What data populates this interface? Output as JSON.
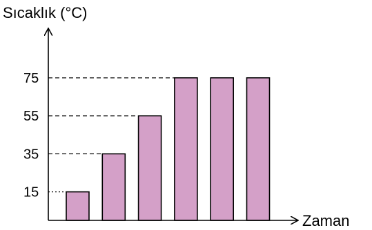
{
  "chart_data": {
    "type": "bar",
    "ylabel": "Sıcaklık (°C)",
    "xlabel": "Zaman",
    "categories": [
      "",
      "",
      "",
      "",
      "",
      ""
    ],
    "values": [
      15,
      35,
      55,
      75,
      75,
      75
    ],
    "yticks": [
      {
        "value": 15,
        "label": "15"
      },
      {
        "value": 35,
        "label": "35"
      },
      {
        "value": 55,
        "label": "55"
      },
      {
        "value": 75,
        "label": "75"
      }
    ],
    "ylim": [
      0,
      75
    ],
    "grid": false,
    "reference_lines": "dashed",
    "colors": {
      "bar_fill": "#d4a0c8",
      "bar_stroke": "#000000",
      "axis": "#000000"
    }
  }
}
